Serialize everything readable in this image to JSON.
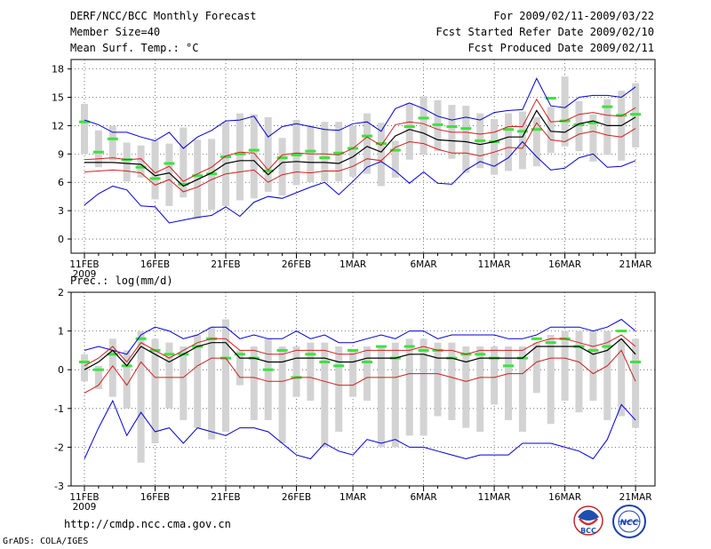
{
  "header": {
    "title": "DERF/NCC/BCC Monthly Forecast",
    "member_size": "Member Size=40",
    "variable_top": "Mean Surf. Temp.: °C",
    "period": "For 2009/02/11-2009/03/22",
    "started": "Fcst Started Refer Date 2009/02/10",
    "produced": "Fcst Produced Date 2009/02/11"
  },
  "footer": {
    "url": "http://cmdp.ncc.cma.gov.cn",
    "grads": "GrADS: COLA/IGES",
    "logo_bcc_text": "BCC",
    "logo_ncc_text": "NCC"
  },
  "colors": {
    "box": "#d3d3d3",
    "mean": "#000000",
    "spread": "#d21f1f",
    "extreme": "#0000d8",
    "median": "#3ee23e",
    "grid": "#555555"
  },
  "chart_data": [
    {
      "type": "box-ensemble",
      "title": "Mean Surf. Temp.: °C",
      "ylim": [
        -1.5,
        19
      ],
      "yticks": [
        0,
        3,
        6,
        9,
        12,
        15,
        18
      ],
      "xlabels": [
        "11FEB",
        "16FEB",
        "21FEB",
        "26FEB",
        "1MAR",
        "6MAR",
        "11MAR",
        "16MAR",
        "21MAR"
      ],
      "xlabel_days": [
        0,
        5,
        10,
        15,
        19,
        24,
        29,
        34,
        39
      ],
      "year_label": "2009",
      "days": 40,
      "series": {
        "box_top": [
          14.3,
          11.5,
          12.0,
          10.2,
          9.9,
          10.4,
          10.1,
          11.8,
          10.5,
          10.6,
          12.4,
          13.3,
          13.2,
          12.9,
          10.7,
          12.6,
          12.0,
          12.4,
          12.4,
          12.0,
          13.3,
          12.3,
          10.4,
          14.4,
          15.1,
          14.7,
          14.2,
          14.1,
          13.3,
          12.7,
          13.3,
          13.5,
          12.9,
          14.0,
          17.2,
          14.6,
          13.2,
          14.8,
          15.7,
          16.5
        ],
        "box_bottom": [
          9.0,
          7.6,
          8.3,
          6.1,
          6.5,
          4.2,
          3.5,
          4.4,
          2.1,
          3.1,
          3.5,
          4.1,
          4.3,
          5.0,
          4.6,
          5.7,
          6.0,
          6.1,
          6.1,
          6.6,
          6.9,
          5.6,
          6.5,
          8.4,
          8.9,
          9.3,
          8.5,
          7.0,
          7.5,
          6.8,
          7.2,
          7.4,
          7.7,
          9.1,
          9.8,
          9.3,
          8.2,
          8.9,
          8.3,
          9.7
        ],
        "max": [
          12.6,
          12.1,
          11.3,
          11.3,
          10.8,
          10.4,
          11.3,
          9.6,
          10.8,
          11.5,
          12.5,
          12.6,
          13.0,
          10.8,
          11.9,
          12.2,
          11.9,
          11.6,
          11.5,
          12.2,
          12.4,
          11.4,
          13.8,
          14.4,
          13.8,
          13.0,
          12.6,
          12.9,
          12.6,
          13.4,
          13.6,
          13.7,
          17.0,
          14.1,
          13.9,
          15.0,
          15.2,
          15.2,
          15.0,
          16.1
        ],
        "min": [
          3.6,
          4.8,
          5.6,
          5.2,
          3.5,
          3.4,
          1.7,
          2.0,
          2.3,
          2.5,
          3.4,
          2.4,
          3.9,
          4.5,
          4.3,
          4.9,
          5.5,
          6.0,
          4.7,
          6.1,
          7.6,
          8.2,
          7.2,
          5.9,
          7.1,
          5.9,
          5.8,
          7.3,
          8.2,
          7.7,
          8.6,
          10.3,
          8.7,
          7.3,
          7.5,
          8.6,
          9.0,
          7.6,
          7.7,
          8.3
        ],
        "upper": [
          8.4,
          8.5,
          8.6,
          8.4,
          8.5,
          7.0,
          7.7,
          6.1,
          6.9,
          7.6,
          8.8,
          9.2,
          9.1,
          7.3,
          8.9,
          9.1,
          9.0,
          9.0,
          8.9,
          9.6,
          10.8,
          9.9,
          12.1,
          12.4,
          12.2,
          11.6,
          11.3,
          11.3,
          11.1,
          11.3,
          11.9,
          11.9,
          14.8,
          12.4,
          12.5,
          13.2,
          13.4,
          13.1,
          13.0,
          13.9
        ],
        "mean": [
          8.1,
          8.1,
          8.1,
          8.0,
          7.9,
          6.7,
          7.0,
          5.6,
          6.3,
          7.0,
          8.0,
          8.3,
          8.3,
          6.8,
          8.1,
          8.2,
          8.1,
          8.1,
          8.0,
          8.7,
          9.8,
          9.2,
          10.9,
          11.6,
          11.2,
          10.5,
          10.4,
          10.3,
          10.0,
          10.3,
          10.8,
          10.8,
          13.6,
          11.4,
          11.3,
          12.2,
          12.5,
          12.0,
          12.0,
          12.9
        ],
        "lower": [
          7.1,
          7.2,
          7.3,
          7.2,
          7.0,
          5.7,
          6.3,
          5.0,
          5.5,
          6.3,
          6.9,
          7.1,
          7.3,
          6.0,
          6.8,
          7.1,
          7.0,
          7.2,
          7.2,
          7.7,
          8.5,
          8.3,
          9.7,
          10.3,
          10.1,
          9.5,
          9.1,
          9.1,
          8.8,
          9.2,
          9.7,
          9.6,
          12.3,
          10.5,
          10.3,
          11.1,
          11.4,
          11.0,
          10.8,
          11.7
        ],
        "median": [
          12.4,
          9.2,
          10.6,
          8.4,
          7.6,
          6.4,
          8.0,
          5.8,
          6.7,
          6.9,
          8.7,
          9.0,
          9.4,
          7.2,
          8.6,
          8.9,
          9.3,
          8.6,
          9.1,
          9.6,
          10.9,
          10.1,
          9.4,
          11.9,
          12.8,
          12.1,
          11.9,
          11.7,
          10.4,
          10.3,
          11.6,
          11.4,
          11.6,
          14.9,
          12.5,
          12.1,
          12.3,
          14.0,
          13.1,
          13.2
        ]
      }
    },
    {
      "type": "box-ensemble",
      "title": "Prec.: log(mm/d)",
      "ylim": [
        -3,
        2
      ],
      "yticks": [
        -3,
        -2,
        -1,
        0,
        1,
        2
      ],
      "xlabels": [
        "11FEB",
        "16FEB",
        "21FEB",
        "26FEB",
        "1MAR",
        "6MAR",
        "11MAR",
        "16MAR",
        "21MAR"
      ],
      "xlabel_days": [
        0,
        5,
        10,
        15,
        19,
        24,
        29,
        34,
        39
      ],
      "year_label": "2009",
      "days": 40,
      "series": {
        "box_top": [
          0.4,
          0.1,
          0.8,
          0.5,
          1.0,
          0.8,
          0.7,
          0.6,
          0.9,
          1.1,
          1.3,
          0.5,
          0.6,
          0.8,
          0.6,
          0.6,
          0.7,
          0.7,
          0.6,
          0.5,
          0.6,
          0.6,
          0.7,
          0.8,
          0.8,
          0.7,
          0.7,
          0.6,
          0.6,
          0.6,
          0.6,
          0.6,
          0.7,
          0.9,
          1.0,
          1.0,
          1.0,
          1.0,
          0.8,
          0.8
        ],
        "box_bottom": [
          -0.3,
          -0.5,
          -0.7,
          -1.0,
          -2.4,
          -1.9,
          -1.0,
          -1.3,
          -1.5,
          -1.8,
          -1.6,
          -0.4,
          -1.3,
          -1.3,
          -1.9,
          -0.7,
          -0.8,
          -2.0,
          -1.6,
          -0.7,
          -0.8,
          -2.0,
          -2.0,
          -1.7,
          -1.7,
          -1.2,
          -1.3,
          -1.5,
          -1.6,
          -0.9,
          -1.3,
          -1.6,
          -0.6,
          -1.4,
          -0.8,
          -1.1,
          -0.8,
          -1.3,
          -1.2,
          -1.5
        ],
        "max": [
          0.5,
          0.6,
          0.5,
          0.4,
          0.9,
          1.1,
          1.0,
          0.8,
          0.9,
          1.1,
          1.1,
          0.8,
          0.9,
          0.8,
          0.8,
          1.0,
          0.8,
          0.9,
          0.7,
          0.7,
          0.8,
          0.9,
          0.8,
          1.0,
          1.0,
          0.8,
          0.9,
          0.9,
          0.9,
          0.9,
          0.8,
          0.8,
          0.9,
          1.1,
          1.1,
          1.1,
          1.0,
          1.1,
          1.3,
          1.0
        ],
        "min": [
          -2.3,
          -1.5,
          -0.8,
          -1.7,
          -1.1,
          -1.6,
          -1.5,
          -1.9,
          -1.5,
          -1.6,
          -1.7,
          -1.5,
          -1.5,
          -1.6,
          -1.9,
          -2.2,
          -2.3,
          -1.9,
          -2.1,
          -2.2,
          -1.8,
          -1.9,
          -1.8,
          -2.0,
          -2.0,
          -2.1,
          -2.2,
          -2.3,
          -2.2,
          -2.2,
          -2.2,
          -1.9,
          -1.9,
          -1.9,
          -2.0,
          -2.1,
          -2.3,
          -1.8,
          -0.9,
          -1.3
        ],
        "upper": [
          0.1,
          0.3,
          0.6,
          0.2,
          0.7,
          0.5,
          0.3,
          0.5,
          0.7,
          0.8,
          0.8,
          0.5,
          0.5,
          0.4,
          0.4,
          0.5,
          0.5,
          0.5,
          0.4,
          0.4,
          0.5,
          0.5,
          0.5,
          0.5,
          0.6,
          0.5,
          0.5,
          0.4,
          0.5,
          0.5,
          0.5,
          0.5,
          0.7,
          0.8,
          0.8,
          0.7,
          0.6,
          0.7,
          0.9,
          0.6
        ],
        "mean": [
          0.0,
          0.2,
          0.5,
          0.1,
          0.6,
          0.4,
          0.2,
          0.4,
          0.6,
          0.7,
          0.7,
          0.3,
          0.3,
          0.2,
          0.2,
          0.3,
          0.3,
          0.3,
          0.2,
          0.2,
          0.3,
          0.3,
          0.3,
          0.4,
          0.4,
          0.3,
          0.3,
          0.2,
          0.3,
          0.3,
          0.3,
          0.3,
          0.6,
          0.6,
          0.6,
          0.6,
          0.4,
          0.5,
          0.8,
          0.4
        ],
        "lower": [
          -0.6,
          -0.4,
          0.1,
          -0.4,
          0.2,
          -0.2,
          -0.2,
          -0.2,
          0.1,
          0.3,
          0.3,
          -0.2,
          -0.2,
          -0.3,
          -0.3,
          -0.2,
          -0.2,
          -0.3,
          -0.4,
          -0.4,
          -0.2,
          -0.2,
          -0.2,
          -0.1,
          -0.1,
          -0.1,
          -0.2,
          -0.3,
          -0.2,
          -0.2,
          -0.1,
          -0.1,
          0.2,
          0.3,
          0.3,
          0.2,
          -0.1,
          0.1,
          0.5,
          -0.3
        ],
        "median": [
          0.2,
          0.0,
          0.4,
          0.1,
          0.8,
          0.5,
          0.4,
          0.4,
          0.6,
          0.8,
          0.3,
          0.4,
          0.3,
          0.0,
          0.5,
          -0.2,
          0.4,
          0.2,
          0.1,
          0.5,
          0.2,
          0.6,
          0.3,
          0.6,
          0.5,
          0.5,
          0.3,
          0.4,
          0.4,
          0.3,
          0.1,
          0.3,
          0.8,
          0.7,
          0.8,
          0.6,
          0.5,
          0.6,
          1.0,
          0.2
        ]
      }
    }
  ]
}
